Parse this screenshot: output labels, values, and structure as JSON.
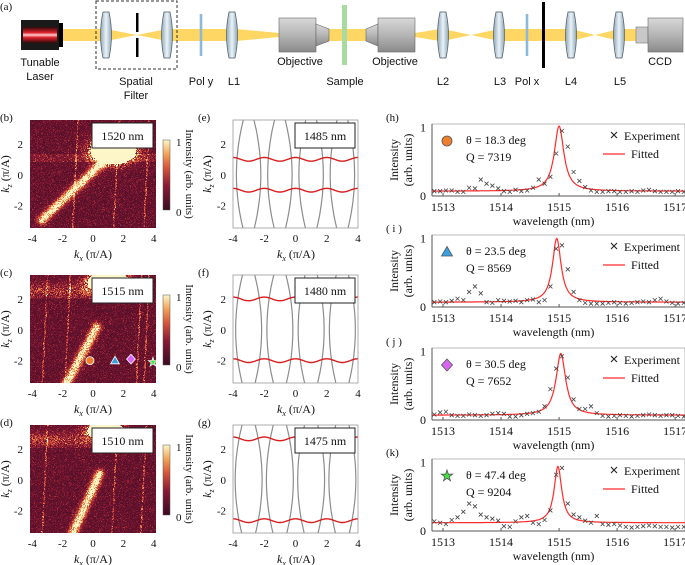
{
  "panel_a": {
    "label": "(a)",
    "components": {
      "laser": [
        "Tunable",
        "Laser"
      ],
      "spatial_filter": [
        "Spatial",
        "Filter"
      ],
      "pol_y": "Pol y",
      "l1": "L1",
      "objective1": "Objective",
      "sample": "Sample",
      "objective2": "Objective",
      "l2": "L2",
      "l3": "L3",
      "pol_x": "Pol x",
      "l4": "L4",
      "l5": "L5",
      "ccd": "CCD"
    },
    "colors": {
      "beam": "#fdd663",
      "sample": "#a8dba0",
      "polarizer": "#8fb8d8",
      "lens": "#c9dbe6"
    }
  },
  "axes": {
    "kx_label": {
      "var": "k",
      "sub": "x",
      "unit": " (π/A)"
    },
    "kz_label": {
      "var": "k",
      "sub": "z",
      "unit": " (π/A)"
    },
    "kx_ticks": [
      -4,
      -2,
      0,
      2,
      4
    ],
    "kz_ticks": [
      2,
      0,
      -2
    ],
    "kx_range": [
      -4.15,
      4.15
    ],
    "kz_range": [
      -3.45,
      3.55
    ]
  },
  "colorbar": {
    "label": "Intensity (arb. units)",
    "max": "1",
    "min": "0"
  },
  "heatmaps": [
    {
      "label": "(b)",
      "wavelength": "1520 nm"
    },
    {
      "label": "(c)",
      "wavelength": "1515 nm",
      "markers": [
        {
          "shape": "circle",
          "kx": -0.2,
          "kz": -2.0,
          "color": "#f07f2d"
        },
        {
          "shape": "triangle",
          "kx": 1.45,
          "kz": -2.0,
          "color": "#3aa0e0"
        },
        {
          "shape": "diamond",
          "kx": 2.5,
          "kz": -1.9,
          "color": "#d865f0"
        },
        {
          "shape": "star",
          "kx": 3.95,
          "kz": -2.1,
          "color": "#3ee83e"
        }
      ]
    },
    {
      "label": "(d)",
      "wavelength": "1510 nm"
    }
  ],
  "bands": [
    {
      "label": "(e)",
      "wavelength": "1485 nm",
      "kz_band": 1.0,
      "gap": 0.22
    },
    {
      "label": "(f)",
      "wavelength": "1480 nm",
      "kz_band": 2.0,
      "gap": 0.17
    },
    {
      "label": "(g)",
      "wavelength": "1475 nm",
      "kz_band": 2.65,
      "gap": 0.14
    }
  ],
  "chart_data": {
    "type": "scatter",
    "xlabel": "wavelength (nm)",
    "ylabel": [
      "Intensity",
      "(arb. units)"
    ],
    "xticks": [
      1513,
      1514,
      1515,
      1516,
      1517
    ],
    "yticks": [
      0,
      1
    ],
    "xlim": [
      1512.81,
      1517.17
    ],
    "ylim": [
      0,
      1.05
    ],
    "legend": [
      "Experiment",
      "Fitted"
    ],
    "legend_placement": "top-right",
    "colors": {
      "experiment": "#444444",
      "fitted": "#ff2a2a"
    },
    "panels": [
      {
        "label": "(h)",
        "theta": "θ = 18.3 deg",
        "q": "Q = 7319",
        "marker": "circle",
        "marker_color": "#f07f2d",
        "fit": {
          "center": 1515.0,
          "hwhm": 0.1,
          "baseline": 0.07,
          "peak": 0.95
        },
        "experiment": {
          "x_start": 1512.85,
          "step": 0.1,
          "y": [
            0.07,
            0.07,
            0.08,
            0.08,
            0.06,
            0.06,
            0.12,
            0.11,
            0.24,
            0.18,
            0.15,
            0.11,
            0.07,
            0.06,
            0.09,
            0.07,
            0.08,
            0.12,
            0.24,
            0.18,
            0.28,
            0.62,
            0.95,
            0.72,
            0.35,
            0.22,
            0.13,
            0.08,
            0.06,
            0.06,
            0.07,
            0.07,
            0.06,
            0.06,
            0.07,
            0.06,
            0.08,
            0.09,
            0.07,
            0.06,
            0.06,
            0.06,
            0.07,
            0.06
          ]
        }
      },
      {
        "label": "( i )",
        "theta": "θ = 23.5 deg",
        "q": "Q = 8569",
        "marker": "triangle",
        "marker_color": "#3aa0e0",
        "fit": {
          "center": 1514.96,
          "hwhm": 0.09,
          "baseline": 0.07,
          "peak": 0.93
        },
        "experiment": {
          "x_start": 1512.85,
          "step": 0.1,
          "y": [
            0.07,
            0.08,
            0.07,
            0.09,
            0.12,
            0.1,
            0.22,
            0.3,
            0.2,
            0.07,
            0.06,
            0.1,
            0.09,
            0.08,
            0.09,
            0.07,
            0.1,
            0.11,
            0.07,
            0.1,
            0.3,
            0.85,
            0.9,
            0.55,
            0.22,
            0.1,
            0.06,
            0.05,
            0.05,
            0.05,
            0.06,
            0.07,
            0.06,
            0.05,
            0.06,
            0.07,
            0.08,
            0.07,
            0.1,
            0.12,
            0.08,
            0.06,
            0.05,
            0.06
          ]
        }
      },
      {
        "label": "( j )",
        "theta": "θ = 30.5 deg",
        "q": "Q = 7652",
        "marker": "diamond",
        "marker_color": "#d865f0",
        "fit": {
          "center": 1515.03,
          "hwhm": 0.1,
          "baseline": 0.07,
          "peak": 0.9
        },
        "experiment": {
          "x_start": 1512.85,
          "step": 0.1,
          "y": [
            0.08,
            0.11,
            0.12,
            0.07,
            0.06,
            0.06,
            0.08,
            0.07,
            0.06,
            0.07,
            0.09,
            0.1,
            0.09,
            0.05,
            0.05,
            0.07,
            0.09,
            0.1,
            0.12,
            0.2,
            0.45,
            0.75,
            0.93,
            0.62,
            0.3,
            0.16,
            0.16,
            0.2,
            0.1,
            0.06,
            0.05,
            0.06,
            0.07,
            0.06,
            0.05,
            0.06,
            0.07,
            0.08,
            0.07,
            0.06,
            0.07,
            0.07,
            0.06,
            0.05
          ]
        }
      },
      {
        "label": "(k)",
        "theta": "θ = 47.4 deg",
        "q": "Q = 9204",
        "marker": "star",
        "marker_color": "#3ee83e",
        "fit": {
          "center": 1514.98,
          "hwhm": 0.08,
          "baseline": 0.12,
          "peak": 0.82
        },
        "experiment": {
          "x_start": 1512.85,
          "step": 0.1,
          "y": [
            0.14,
            0.12,
            0.1,
            0.16,
            0.2,
            0.28,
            0.4,
            0.36,
            0.24,
            0.2,
            0.18,
            0.15,
            0.07,
            0.06,
            0.14,
            0.2,
            0.22,
            0.12,
            0.1,
            0.16,
            0.3,
            0.82,
            0.92,
            0.4,
            0.24,
            0.2,
            0.15,
            0.12,
            0.22,
            0.1,
            0.09,
            0.1,
            0.08,
            0.06,
            0.05,
            0.06,
            0.07,
            0.08,
            0.07,
            0.06,
            0.06,
            0.05,
            0.06,
            0.06
          ]
        }
      }
    ]
  }
}
